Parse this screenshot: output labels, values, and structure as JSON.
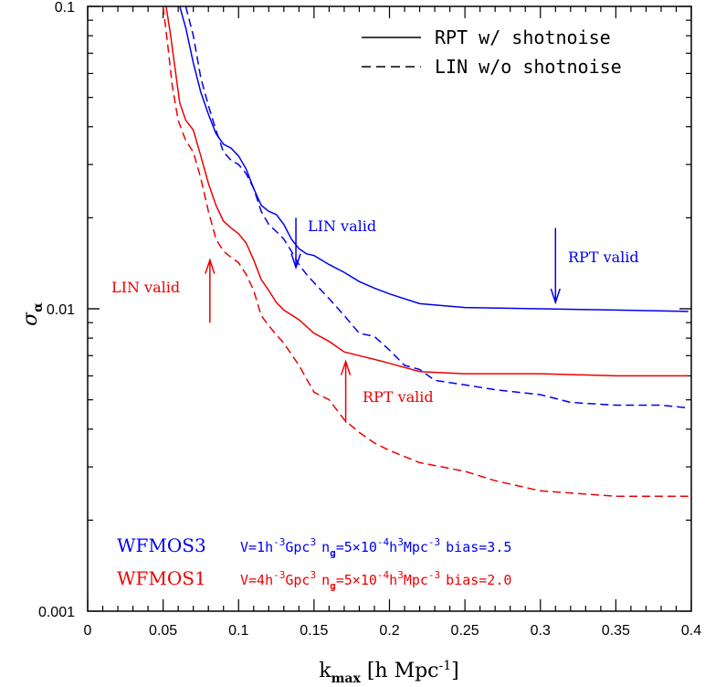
{
  "chart_data": {
    "type": "line",
    "xlabel": "k",
    "xlabel_sub": "max",
    "xlabel_units": " [h Mpc",
    "xlabel_units_sup": "-1",
    "xlabel_units_end": "]",
    "ylabel": "σ",
    "ylabel_sub": "α",
    "xlim": [
      0,
      0.4
    ],
    "ylim": [
      0.001,
      0.1
    ],
    "y_scale": "log",
    "x_ticks": [
      0,
      0.05,
      0.1,
      0.15,
      0.2,
      0.25,
      0.3,
      0.35,
      0.4
    ],
    "x_tick_labels": [
      "0",
      "0.05",
      "0.1",
      "0.15",
      "0.2",
      "0.25",
      "0.3",
      "0.35",
      "0.4"
    ],
    "y_ticks_labeled": [
      0.001,
      0.01,
      0.1
    ],
    "y_tick_labels": [
      "0.001",
      "0.01",
      "0.1"
    ],
    "legend_position": "top-right",
    "legend": [
      {
        "label": "RPT w/ shotnoise",
        "style": "solid"
      },
      {
        "label": "LIN w/o shotnoise",
        "style": "dashed"
      }
    ],
    "series": [
      {
        "survey": "WFMOS3",
        "method": "RPT",
        "style": "solid",
        "color": "#0000ee",
        "x": [
          0.061,
          0.065,
          0.07,
          0.075,
          0.08,
          0.085,
          0.09,
          0.095,
          0.1,
          0.105,
          0.11,
          0.115,
          0.12,
          0.125,
          0.13,
          0.135,
          0.14,
          0.145,
          0.15,
          0.16,
          0.17,
          0.18,
          0.19,
          0.2,
          0.22,
          0.25,
          0.3,
          0.35,
          0.398
        ],
        "y": [
          0.1,
          0.085,
          0.065,
          0.052,
          0.044,
          0.038,
          0.035,
          0.034,
          0.032,
          0.029,
          0.025,
          0.022,
          0.021,
          0.0205,
          0.019,
          0.017,
          0.0158,
          0.0152,
          0.015,
          0.014,
          0.0132,
          0.0123,
          0.0117,
          0.0112,
          0.0104,
          0.0101,
          0.01,
          0.0099,
          0.0098
        ]
      },
      {
        "survey": "WFMOS3",
        "method": "LIN",
        "style": "dashed",
        "color": "#0000ee",
        "x": [
          0.065,
          0.07,
          0.075,
          0.08,
          0.085,
          0.09,
          0.095,
          0.1,
          0.105,
          0.11,
          0.115,
          0.12,
          0.125,
          0.13,
          0.135,
          0.14,
          0.145,
          0.15,
          0.16,
          0.17,
          0.18,
          0.19,
          0.2,
          0.21,
          0.22,
          0.23,
          0.25,
          0.27,
          0.3,
          0.32,
          0.35,
          0.38,
          0.398
        ],
        "y": [
          0.1,
          0.08,
          0.058,
          0.047,
          0.039,
          0.033,
          0.031,
          0.03,
          0.028,
          0.025,
          0.021,
          0.019,
          0.018,
          0.017,
          0.0155,
          0.014,
          0.013,
          0.0122,
          0.0108,
          0.0095,
          0.0083,
          0.0081,
          0.0073,
          0.0065,
          0.0063,
          0.0058,
          0.0056,
          0.0054,
          0.0052,
          0.0049,
          0.0048,
          0.0048,
          0.0047
        ]
      },
      {
        "survey": "WFMOS1",
        "method": "RPT",
        "style": "solid",
        "color": "#ee0000",
        "x": [
          0.052,
          0.055,
          0.058,
          0.061,
          0.065,
          0.07,
          0.075,
          0.08,
          0.085,
          0.09,
          0.095,
          0.1,
          0.105,
          0.11,
          0.115,
          0.12,
          0.125,
          0.13,
          0.14,
          0.15,
          0.16,
          0.17,
          0.18,
          0.19,
          0.2,
          0.22,
          0.25,
          0.3,
          0.35,
          0.398
        ],
        "y": [
          0.1,
          0.08,
          0.062,
          0.048,
          0.042,
          0.039,
          0.032,
          0.026,
          0.022,
          0.0195,
          0.0185,
          0.0177,
          0.0165,
          0.0145,
          0.0125,
          0.0115,
          0.0105,
          0.0099,
          0.0092,
          0.0083,
          0.0078,
          0.0072,
          0.007,
          0.0068,
          0.0066,
          0.0062,
          0.0061,
          0.0061,
          0.006,
          0.006
        ]
      },
      {
        "survey": "WFMOS1",
        "method": "LIN",
        "style": "dashed",
        "color": "#ee0000",
        "x": [
          0.05,
          0.053,
          0.056,
          0.06,
          0.065,
          0.07,
          0.075,
          0.08,
          0.085,
          0.09,
          0.095,
          0.1,
          0.105,
          0.11,
          0.115,
          0.12,
          0.125,
          0.13,
          0.14,
          0.15,
          0.16,
          0.17,
          0.18,
          0.19,
          0.2,
          0.22,
          0.25,
          0.27,
          0.3,
          0.35,
          0.398
        ],
        "y": [
          0.1,
          0.075,
          0.055,
          0.042,
          0.036,
          0.033,
          0.027,
          0.021,
          0.017,
          0.0155,
          0.0148,
          0.0142,
          0.013,
          0.0115,
          0.0095,
          0.0088,
          0.0082,
          0.0077,
          0.0065,
          0.0053,
          0.005,
          0.0043,
          0.0039,
          0.0036,
          0.0034,
          0.0031,
          0.0029,
          0.0027,
          0.0025,
          0.0024,
          0.0024
        ]
      }
    ],
    "annotations": [
      {
        "text": "LIN valid",
        "color": "#0000ee",
        "arrow_x": 0.138,
        "arrow_y_from": 0.02,
        "arrow_y_to": 0.0137,
        "direction": "down"
      },
      {
        "text": "RPT valid",
        "color": "#0000ee",
        "arrow_x": 0.31,
        "arrow_y_from": 0.0185,
        "arrow_y_to": 0.0105,
        "direction": "down"
      },
      {
        "text": "LIN valid",
        "color": "#ee0000",
        "arrow_x": 0.081,
        "arrow_y_from": 0.009,
        "arrow_y_to": 0.0145,
        "direction": "up"
      },
      {
        "text": "RPT valid",
        "color": "#ee0000",
        "arrow_x": 0.171,
        "arrow_y_from": 0.0042,
        "arrow_y_to": 0.0067,
        "direction": "up"
      }
    ],
    "surveys": [
      {
        "name": "WFMOS3",
        "color": "#0000ee",
        "v_pre": "V=1h",
        "v_sup": "-3",
        "v_post": "Gpc",
        "v_sup2": "3",
        "n_pre": "n",
        "n_sub": "g",
        "n_mid": "=5×10",
        "n_sup": "-4",
        "n_mid2": "h",
        "n_sup2": "3",
        "n_mid3": "Mpc",
        "n_sup3": "-3",
        "bias": "bias=3.5"
      },
      {
        "name": "WFMOS1",
        "color": "#ee0000",
        "v_pre": "V=4h",
        "v_sup": "-3",
        "v_post": "Gpc",
        "v_sup2": "3",
        "n_pre": "n",
        "n_sub": "g",
        "n_mid": "=5×10",
        "n_sup": "-4",
        "n_mid2": "h",
        "n_sup2": "3",
        "n_mid3": "Mpc",
        "n_sup3": "-3",
        "bias": "bias=2.0"
      }
    ]
  }
}
